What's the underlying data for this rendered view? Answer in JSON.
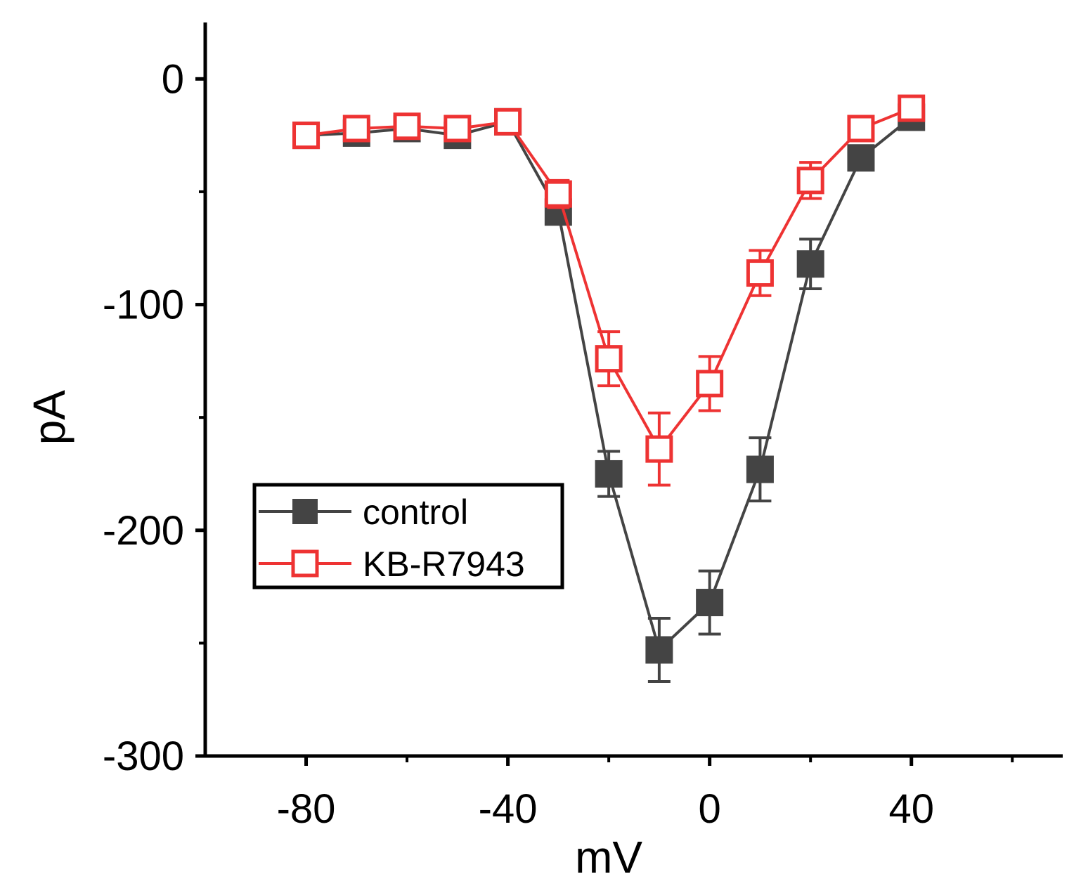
{
  "chart_data": {
    "type": "line",
    "title": "",
    "xlabel": "mV",
    "ylabel": "pA",
    "xlim": [
      -100,
      70
    ],
    "ylim": [
      -300,
      25
    ],
    "x_ticks": [
      -80,
      -40,
      0,
      40
    ],
    "x_tick_labels": [
      "-80",
      "-40",
      "0",
      "40"
    ],
    "x_minor_ticks": [
      -60,
      -20,
      20,
      60
    ],
    "y_ticks": [
      0,
      -100,
      -200,
      -300
    ],
    "y_tick_labels": [
      "0",
      "-100",
      "-200",
      "-300"
    ],
    "grid": false,
    "legend": {
      "placement": "lower-left",
      "entries": [
        "control",
        "KB-R7943"
      ]
    },
    "series": [
      {
        "name": "control",
        "marker": "filled-square",
        "color": "#444444",
        "x": [
          -80,
          -70,
          -60,
          -50,
          -40,
          -30,
          -20,
          -10,
          0,
          10,
          20,
          30,
          40
        ],
        "values": [
          -25,
          -24,
          -22,
          -25,
          -19,
          -59,
          -175,
          -253,
          -232,
          -173,
          -82,
          -35,
          -17
        ],
        "errors": [
          3,
          3,
          3,
          3,
          3,
          5,
          10,
          14,
          14,
          14,
          11,
          5,
          3
        ]
      },
      {
        "name": "KB-R7943",
        "marker": "open-square",
        "color": "#ee3333",
        "x": [
          -80,
          -70,
          -60,
          -50,
          -40,
          -30,
          -20,
          -10,
          0,
          10,
          20,
          30,
          40
        ],
        "values": [
          -25,
          -22,
          -21,
          -22,
          -19,
          -51,
          -124,
          -164,
          -135,
          -86,
          -45,
          -22,
          -13
        ],
        "errors": [
          3,
          3,
          3,
          3,
          3,
          6,
          12,
          16,
          12,
          10,
          8,
          4,
          3
        ]
      }
    ]
  }
}
